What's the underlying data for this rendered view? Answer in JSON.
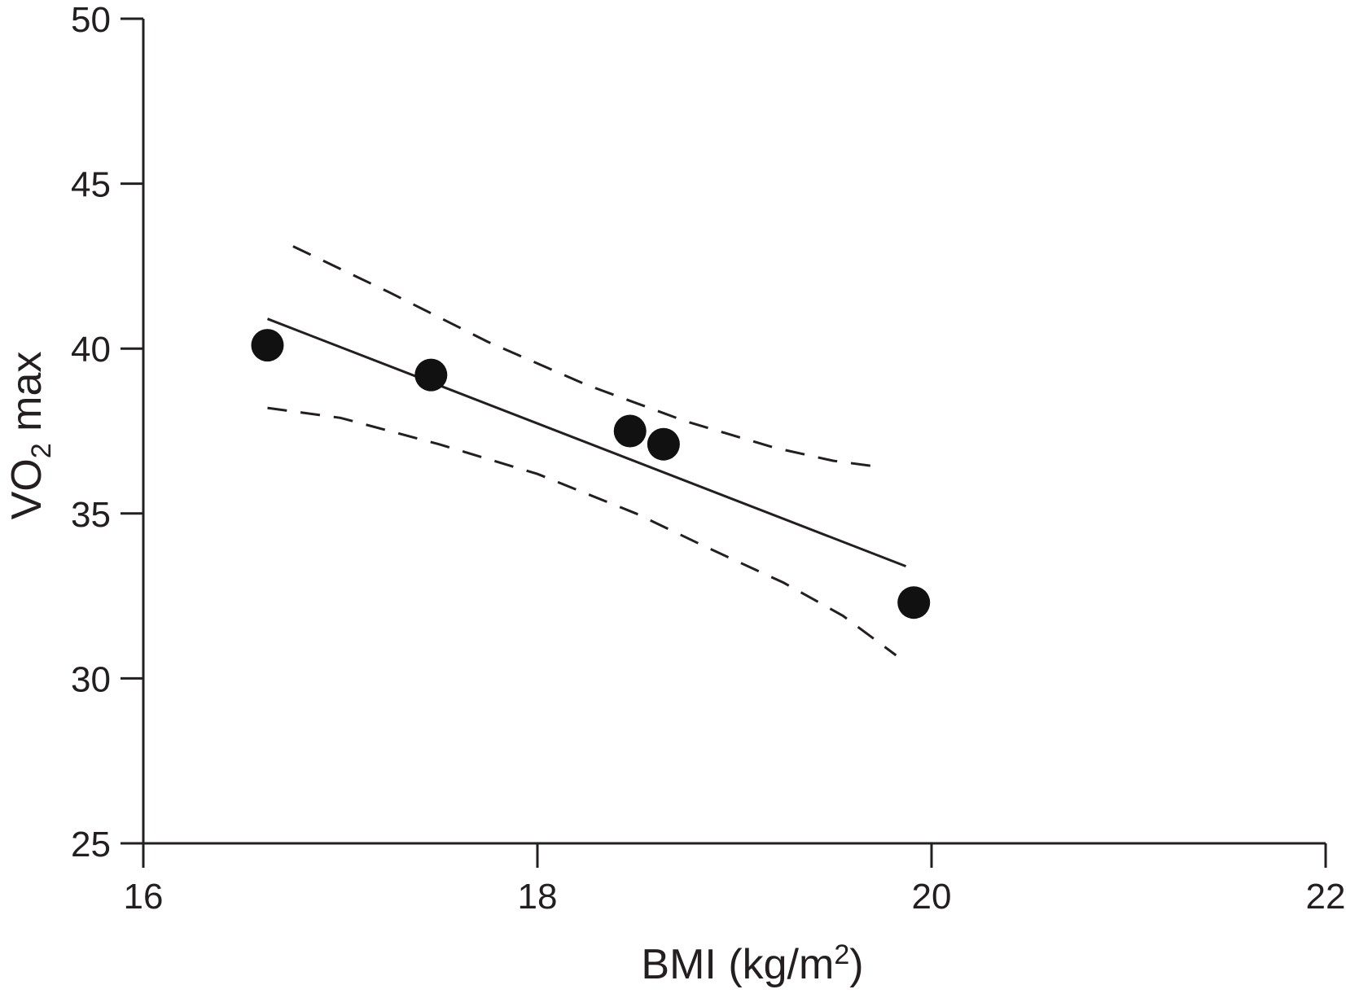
{
  "chart_data": {
    "type": "scatter",
    "xlabel": {
      "main": "BMI (kg/m",
      "sup": "2",
      "tail": ")"
    },
    "ylabel": {
      "pre": "VO",
      "sub": "2",
      "post": " max"
    },
    "xlim": [
      16,
      22
    ],
    "ylim": [
      25,
      50
    ],
    "xticks": [
      16,
      18,
      20,
      22
    ],
    "yticks": [
      25,
      30,
      35,
      40,
      45,
      50
    ],
    "grid": false,
    "series": [
      {
        "kind": "points",
        "x": [
          16.63,
          17.46,
          18.47,
          18.64,
          19.91
        ],
        "y": [
          40.1,
          39.2,
          37.5,
          37.1,
          32.3
        ]
      },
      {
        "kind": "fit",
        "x": [
          16.63,
          19.87
        ],
        "y": [
          40.9,
          33.4
        ]
      },
      {
        "kind": "ci-upper",
        "x": [
          16.76,
          17.25,
          17.75,
          18.25,
          18.75,
          19.2,
          19.5,
          19.75
        ],
        "y": [
          43.1,
          41.7,
          40.2,
          38.9,
          37.8,
          37.0,
          36.6,
          36.4
        ]
      },
      {
        "kind": "ci-lower",
        "x": [
          16.63,
          17.0,
          17.5,
          18.0,
          18.5,
          18.85,
          19.25,
          19.55,
          19.82
        ],
        "y": [
          38.2,
          37.9,
          37.1,
          36.2,
          35.0,
          34.0,
          32.9,
          31.9,
          30.7
        ]
      }
    ]
  }
}
